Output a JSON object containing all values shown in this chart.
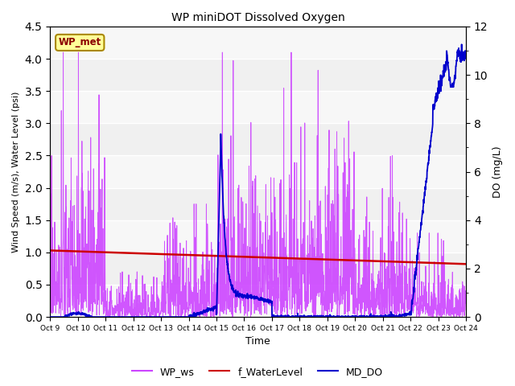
{
  "title": "WP miniDOT Dissolved Oxygen",
  "xlabel": "Time",
  "ylabel_left": "Wind Speed (m/s), Water Level (psi)",
  "ylabel_right": "DO (mg/L)",
  "xlim": [
    0,
    15
  ],
  "ylim_left": [
    0,
    4.5
  ],
  "ylim_right": [
    0,
    12
  ],
  "yticks_left": [
    0.0,
    0.5,
    1.0,
    1.5,
    2.0,
    2.5,
    3.0,
    3.5,
    4.0,
    4.5
  ],
  "yticks_right": [
    0,
    2,
    4,
    6,
    8,
    10,
    12
  ],
  "xtick_positions": [
    0,
    1,
    2,
    3,
    4,
    5,
    6,
    7,
    8,
    9,
    10,
    11,
    12,
    13,
    14,
    15
  ],
  "xtick_labels": [
    "Oct 9",
    "Oct 10",
    "Oct 11",
    "Oct 12",
    "Oct 13",
    "Oct 14",
    "Oct 15",
    "Oct 16",
    "Oct 17",
    "Oct 18",
    "Oct 19",
    "Oct 20",
    "Oct 21",
    "Oct 22",
    "Oct 23",
    "Oct 24"
  ],
  "annotation_text": "WP_met",
  "annotation_box_facecolor": "#FFFF99",
  "annotation_text_color": "#8B0000",
  "annotation_edge_color": "#AA8800",
  "wp_ws_color": "#CC44FF",
  "f_wl_color": "#CC0000",
  "md_do_color": "#0000CC",
  "bg_color": "#F0F0F0",
  "band_colors": [
    "#E8E8E8",
    "#D8D8D8"
  ],
  "legend_labels": [
    "WP_ws",
    "f_WaterLevel",
    "MD_DO"
  ],
  "figsize": [
    6.4,
    4.8
  ],
  "dpi": 100
}
